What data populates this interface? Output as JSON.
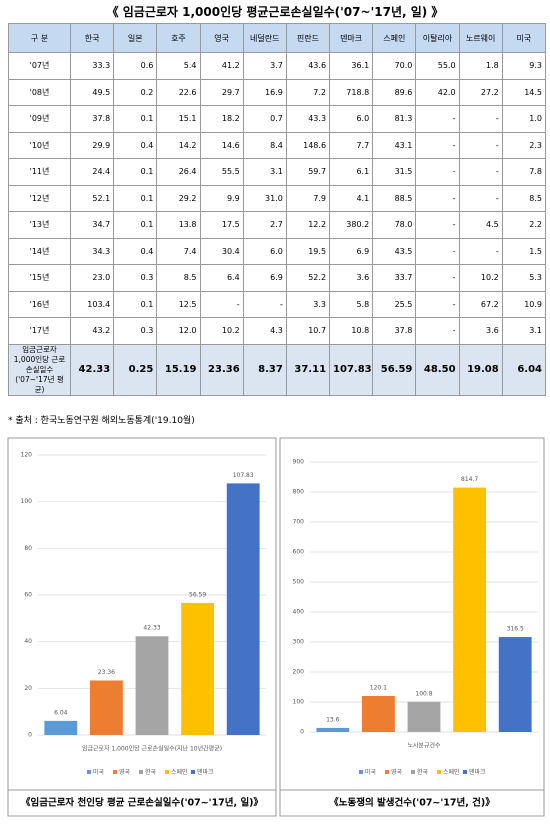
{
  "title": "《 임금근로자 1,000인당 평균근로손실일수('07~'17년, 일) 》",
  "table": {
    "header": [
      "구 분",
      "한국",
      "일본",
      "호주",
      "영국",
      "네덜란드",
      "핀란드",
      "덴마크",
      "스페인",
      "이탈리아",
      "노르웨이",
      "미국"
    ],
    "rows": [
      [
        "'07년",
        "33.3",
        "0.6",
        "5.4",
        "41.2",
        "3.7",
        "43.6",
        "36.1",
        "70.0",
        "55.0",
        "1.8",
        "9.3"
      ],
      [
        "'08년",
        "49.5",
        "0.2",
        "22.6",
        "29.7",
        "16.9",
        "7.2",
        "718.8",
        "89.6",
        "42.0",
        "27.2",
        "14.5"
      ],
      [
        "'09년",
        "37.8",
        "0.1",
        "15.1",
        "18.2",
        "0.7",
        "43.3",
        "6.0",
        "81.3",
        "-",
        "-",
        "1.0"
      ],
      [
        "'10년",
        "29.9",
        "0.4",
        "14.2",
        "14.6",
        "8.4",
        "148.6",
        "7.7",
        "43.1",
        "-",
        "-",
        "2.3"
      ],
      [
        "'11년",
        "24.4",
        "0.1",
        "26.4",
        "55.5",
        "3.1",
        "59.7",
        "6.1",
        "31.5",
        "-",
        "-",
        "7.8"
      ],
      [
        "'12년",
        "52.1",
        "0.1",
        "29.2",
        "9.9",
        "31.0",
        "7.9",
        "4.1",
        "88.5",
        "-",
        "-",
        "8.5"
      ],
      [
        "'13년",
        "34.7",
        "0.1",
        "13.8",
        "17.5",
        "2.7",
        "12.2",
        "380.2",
        "78.0",
        "-",
        "4.5",
        "2.2"
      ],
      [
        "'14년",
        "34.3",
        "0.4",
        "7.4",
        "30.4",
        "6.0",
        "19.5",
        "6.9",
        "43.5",
        "-",
        "-",
        "1.5"
      ],
      [
        "'15년",
        "23.0",
        "0.3",
        "8.5",
        "6.4",
        "6.9",
        "52.2",
        "3.6",
        "33.7",
        "-",
        "10.2",
        "5.3"
      ],
      [
        "'16년",
        "103.4",
        "0.1",
        "12.5",
        "-",
        "-",
        "3.3",
        "5.8",
        "25.5",
        "-",
        "67.2",
        "10.9"
      ],
      [
        "'17년",
        "43.2",
        "0.3",
        "12.0",
        "10.2",
        "4.3",
        "10.7",
        "10.8",
        "37.8",
        "-",
        "3.6",
        "3.1"
      ],
      [
        "임금근로자 1,000인당 근로손실일수 ('07~'17년 평균)",
        "42.33",
        "0.25",
        "15.19",
        "23.36",
        "8.37",
        "37.11",
        "107.83",
        "56.59",
        "48.50",
        "19.08",
        "6.04"
      ]
    ]
  },
  "note": "* 출처 : 한국노동연구원 해외노동통계('19.10월)",
  "chart_data": [
    {
      "type": "bar",
      "categories": [
        "미국",
        "영국",
        "한국",
        "스페인",
        "덴마크"
      ],
      "values": [
        6.04,
        23.36,
        42.33,
        56.59,
        107.83
      ],
      "colors": [
        "#5b9bd5",
        "#ed7d31",
        "#a5a5a5",
        "#ffc000",
        "#4472c4"
      ],
      "ylim": [
        0,
        120
      ],
      "yticks": [
        0,
        20,
        40,
        60,
        80,
        100,
        120
      ],
      "grid": true,
      "xlabel": "임금근로자 1,000인당 근로손실일수(지난 10년간평균)",
      "caption": "《임금근로자 천인당 평균 근로손실일수('07~'17년, 일)》"
    },
    {
      "type": "bar",
      "categories": [
        "미국",
        "영국",
        "한국",
        "스페인",
        "덴마크"
      ],
      "values": [
        13.6,
        120.1,
        100.8,
        814.7,
        316.5
      ],
      "colors": [
        "#5b9bd5",
        "#ed7d31",
        "#a5a5a5",
        "#ffc000",
        "#4472c4"
      ],
      "ylim": [
        0,
        900
      ],
      "yticks": [
        0,
        100,
        200,
        300,
        400,
        500,
        600,
        700,
        800,
        900
      ],
      "grid": true,
      "xlabel": "노사분규건수",
      "caption": "《노동쟁의 발생건수('07~'17년, 건)》"
    }
  ]
}
